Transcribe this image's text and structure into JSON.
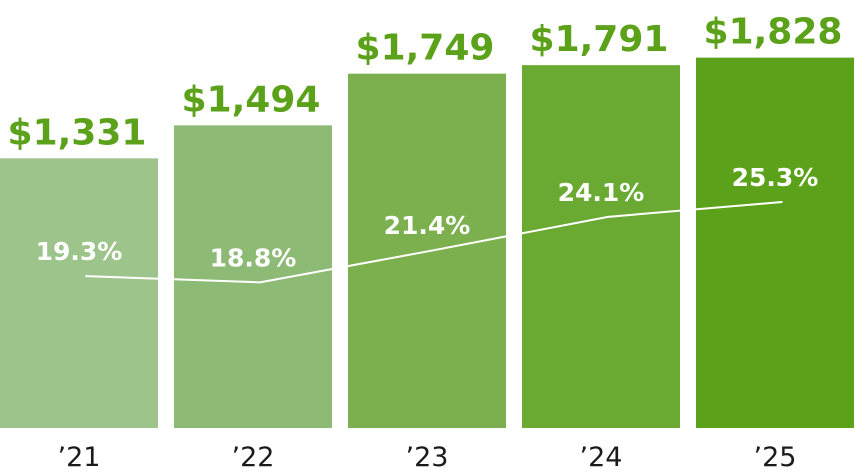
{
  "chart_data": {
    "type": "bar",
    "categories": [
      "’21",
      "’22",
      "’23",
      "’24",
      "’25"
    ],
    "values": [
      1331,
      1494,
      1749,
      1791,
      1828
    ],
    "value_labels": [
      "$1,331",
      "$1,494",
      "$1,749",
      "$1,791",
      "$1,828"
    ],
    "line_series": {
      "values": [
        19.3,
        18.8,
        21.4,
        24.1,
        25.3
      ],
      "labels": [
        "19.3%",
        "18.8%",
        "21.4%",
        "24.1%",
        "25.3%"
      ],
      "color": "#ffffff"
    },
    "bar_colors": [
      "#9dc48b",
      "#8dba75",
      "#7cb04f",
      "#6aaa33",
      "#5ba21a"
    ],
    "value_label_color": "#5ba21a",
    "title": "",
    "xlabel": "",
    "ylabel": "",
    "grid": false,
    "legend": "none"
  }
}
